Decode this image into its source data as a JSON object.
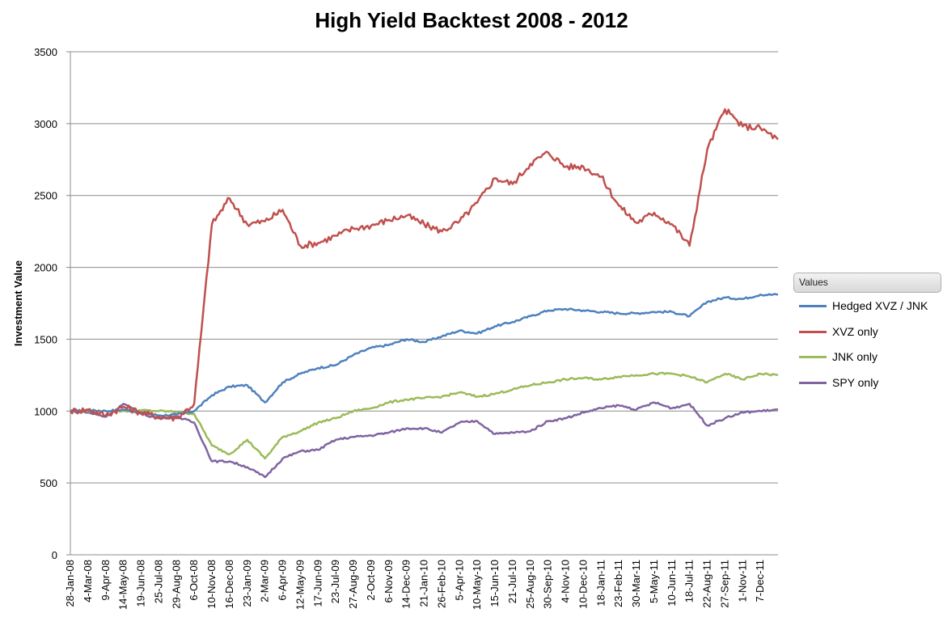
{
  "chart_data": {
    "type": "line",
    "title": "High Yield Backtest 2008 - 2012",
    "ylabel": "Investment Value",
    "xlabel": "",
    "ylim": [
      0,
      3500
    ],
    "yticks": [
      0,
      500,
      1000,
      1500,
      2000,
      2500,
      3000,
      3500
    ],
    "grid": "horizontal",
    "legend_title": "Values",
    "legend_position": "right",
    "x": [
      "28-Jan-08",
      "4-Mar-08",
      "9-Apr-08",
      "14-May-08",
      "19-Jun-08",
      "25-Jul-08",
      "29-Aug-08",
      "6-Oct-08",
      "10-Nov-08",
      "16-Dec-08",
      "23-Jan-09",
      "2-Mar-09",
      "6-Apr-09",
      "12-May-09",
      "17-Jun-09",
      "23-Jul-09",
      "27-Aug-09",
      "2-Oct-09",
      "6-Nov-09",
      "14-Dec-09",
      "21-Jan-10",
      "26-Feb-10",
      "5-Apr-10",
      "10-May-10",
      "15-Jun-10",
      "21-Jul-10",
      "25-Aug-10",
      "30-Sep-10",
      "4-Nov-10",
      "10-Dec-10",
      "18-Jan-11",
      "23-Feb-11",
      "30-Mar-11",
      "5-May-11",
      "10-Jun-11",
      "18-Jul-11",
      "22-Aug-11",
      "27-Sep-11",
      "1-Nov-11",
      "7-Dec-11"
    ],
    "x_end": "30-Dec-11",
    "series": [
      {
        "name": "Hedged XVZ / JNK",
        "color": "#4f81bd",
        "values": [
          1000,
          1005,
          1000,
          1010,
          990,
          970,
          975,
          1000,
          1110,
          1170,
          1180,
          1060,
          1200,
          1260,
          1300,
          1320,
          1390,
          1440,
          1460,
          1500,
          1480,
          1520,
          1560,
          1540,
          1590,
          1620,
          1660,
          1700,
          1710,
          1700,
          1690,
          1680,
          1680,
          1690,
          1690,
          1660,
          1760,
          1790,
          1780,
          1810
        ],
        "end": 1810
      },
      {
        "name": "XVZ only",
        "color": "#c0504d",
        "values": [
          1000,
          1010,
          970,
          1030,
          990,
          960,
          950,
          1050,
          2300,
          2480,
          2300,
          2320,
          2400,
          2150,
          2170,
          2220,
          2270,
          2290,
          2330,
          2360,
          2300,
          2250,
          2320,
          2450,
          2620,
          2580,
          2720,
          2800,
          2700,
          2700,
          2630,
          2430,
          2310,
          2380,
          2300,
          2150,
          2820,
          3100,
          2980,
          2970
        ],
        "end": 2890
      },
      {
        "name": "JNK only",
        "color": "#9bbb59",
        "values": [
          1000,
          1000,
          1000,
          1000,
          1005,
          1000,
          995,
          980,
          760,
          700,
          800,
          670,
          820,
          860,
          920,
          950,
          1000,
          1020,
          1060,
          1080,
          1090,
          1100,
          1130,
          1100,
          1120,
          1150,
          1180,
          1200,
          1220,
          1230,
          1220,
          1240,
          1250,
          1260,
          1260,
          1240,
          1200,
          1260,
          1220,
          1260
        ],
        "end": 1250
      },
      {
        "name": "SPY only",
        "color": "#8064a2",
        "values": [
          1000,
          990,
          960,
          1050,
          980,
          950,
          960,
          920,
          650,
          650,
          610,
          540,
          670,
          720,
          730,
          800,
          820,
          830,
          850,
          880,
          880,
          850,
          920,
          930,
          840,
          850,
          860,
          930,
          950,
          990,
          1020,
          1040,
          1010,
          1060,
          1020,
          1050,
          900,
          950,
          990,
          1000
        ],
        "end": 1010
      }
    ]
  }
}
